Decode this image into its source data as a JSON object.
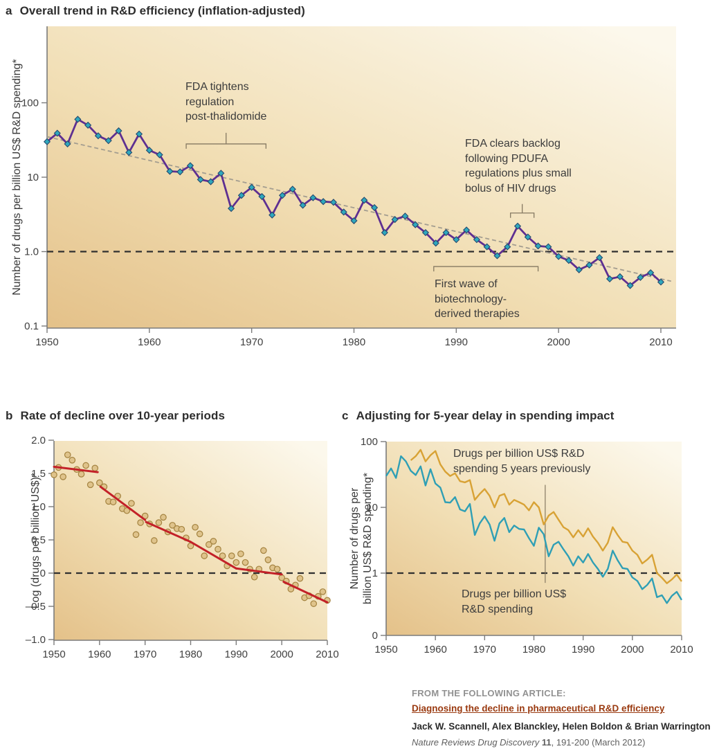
{
  "panels": {
    "a": {
      "letter": "a",
      "title": "Overall trend in R&D efficiency (inflation-adjusted)",
      "ylabel": "Number of drugs per billion US$ R&D spending*"
    },
    "b": {
      "letter": "b",
      "title": "Rate of decline over 10-year periods",
      "ylabel": "Log (drugs per billion US$)*"
    },
    "c": {
      "letter": "c",
      "title": "Adjusting for 5-year delay in spending impact",
      "ylabel": "Number of drugs per\nbillion US$ R&D spending*"
    }
  },
  "annotations": {
    "fda_tightens": "FDA tightens\nregulation\npost-thalidomide",
    "fda_clears": "FDA clears backlog\nfollowing PDUFA\nregulations plus small\nbolus of HIV drugs",
    "first_wave": "First wave of\nbiotechnology-\nderived therapies",
    "c_top": "Drugs per billion US$ R&D\nspending 5 years previously",
    "c_bottom": "Drugs per billion US$\nR&D spending"
  },
  "footer": {
    "heading": "FROM THE FOLLOWING ARTICLE:",
    "link": "Diagnosing the decline in pharmaceutical R&D efficiency",
    "authors": "Jack W. Scannell, Alex Blanckley, Helen Boldon & Brian Warrington",
    "journal_name": "Nature Reviews Drug Discovery",
    "journal_volume": "11",
    "journal_rest": ", 191-200 (March 2012)"
  },
  "colors": {
    "gradient_bottom": "#e4c189",
    "gradient_mid": "#f1deb4",
    "gradient_top": "#fcf8ec",
    "axis": "#7b7b7b",
    "tick_text": "#3f3f3f",
    "purple": "#5e2f91",
    "marker_fill": "#2fa8bd",
    "marker_stroke": "#25496e",
    "trend": "#a39d90",
    "ref_line": "#2f2f2f",
    "red": "#c32128",
    "dot_fill": "#dfc38b",
    "dot_stroke": "#a3823f",
    "teal": "#2f9fb5",
    "orange": "#d8a235",
    "bracket": "#857962",
    "link": "#9a3a10"
  },
  "chart_data": [
    {
      "id": "a",
      "type": "line",
      "title": "Overall trend in R&D efficiency (inflation-adjusted)",
      "ylabel": "Number of drugs per billion US$ R&D spending*",
      "yscale": "log",
      "ylim": [
        0.1,
        1000
      ],
      "grid": false,
      "yticks": [
        {
          "v": 100,
          "label": "100"
        },
        {
          "v": 10,
          "label": "10"
        },
        {
          "v": 1,
          "label": "1.0"
        },
        {
          "v": 0.1,
          "label": "0.1"
        }
      ],
      "xticks": [
        1950,
        1960,
        1970,
        1980,
        1990,
        2000,
        2010
      ],
      "xlim": [
        1950,
        2011.5
      ],
      "reference_line": 1.0,
      "x_start": 1950,
      "x_step": 1,
      "series": [
        {
          "name": "Number of drugs per billion US$ R&D spending (inflation-adjusted)",
          "color": "#5e2f91",
          "marker": "diamond",
          "values": [
            30,
            39,
            28,
            60,
            50,
            36,
            31,
            42,
            21.5,
            38,
            23,
            20,
            12,
            11.8,
            14.3,
            9.3,
            8.7,
            11.3,
            3.8,
            5.7,
            7.3,
            5.5,
            3.1,
            5.7,
            6.9,
            4.2,
            5.3,
            4.7,
            4.6,
            3.4,
            2.6,
            4.9,
            3.9,
            1.8,
            2.7,
            3,
            2.3,
            1.8,
            1.3,
            1.8,
            1.45,
            1.95,
            1.45,
            1.16,
            0.88,
            1.16,
            2.2,
            1.57,
            1.19,
            1.16,
            0.86,
            0.76,
            0.57,
            0.66,
            0.83,
            0.43,
            0.46,
            0.35,
            0.45,
            0.52,
            0.39
          ]
        }
      ],
      "trend": {
        "x": [
          1950,
          2011
        ],
        "v": [
          35,
          0.4
        ],
        "style": "dashed"
      },
      "brackets": [
        {
          "x1": 1963.6,
          "x2": 1971.4,
          "v": 28,
          "stem": 16
        },
        {
          "x1": 1995.3,
          "x2": 1997.6,
          "v": 3.3,
          "stem": 13
        },
        {
          "x1": 1987.8,
          "x2": 1998.0,
          "v": 0.63,
          "stem": 0
        }
      ]
    },
    {
      "id": "b",
      "type": "scatter",
      "title": "Rate of decline over 10-year periods",
      "ylabel": "Log (drugs per billion US$)*",
      "yscale": "linear",
      "ylim": [
        -1.0,
        2.0
      ],
      "grid": false,
      "yticks": [
        {
          "v": 2,
          "label": "2.0"
        },
        {
          "v": 1.5,
          "label": "1.5"
        },
        {
          "v": 1,
          "label": "1.0"
        },
        {
          "v": 0.5,
          "label": "0.5"
        },
        {
          "v": 0,
          "label": "0"
        },
        {
          "v": -0.5,
          "label": "–0.5"
        },
        {
          "v": -1,
          "label": "–1.0"
        }
      ],
      "xticks": [
        1950,
        1960,
        1970,
        1980,
        1990,
        2000,
        2010
      ],
      "xlim": [
        1950,
        2010
      ],
      "reference_line": 0,
      "x_start": 1950,
      "x_step": 1,
      "scatter_values": [
        1.48,
        1.59,
        1.45,
        1.78,
        1.7,
        1.56,
        1.49,
        1.62,
        1.33,
        1.58,
        1.36,
        1.3,
        1.08,
        1.07,
        1.16,
        0.97,
        0.94,
        1.05,
        0.58,
        0.76,
        0.86,
        0.74,
        0.49,
        0.76,
        0.84,
        0.62,
        0.72,
        0.67,
        0.66,
        0.53,
        0.41,
        0.69,
        0.59,
        0.26,
        0.43,
        0.48,
        0.36,
        0.26,
        0.11,
        0.26,
        0.16,
        0.29,
        0.16,
        0.06,
        -0.06,
        0.06,
        0.34,
        0.2,
        0.08,
        0.06,
        -0.07,
        -0.12,
        -0.24,
        -0.18,
        -0.08,
        -0.37,
        -0.34,
        -0.46,
        -0.35,
        -0.28,
        -0.41
      ],
      "fit_segments": [
        [
          [
            1950,
            1.6
          ],
          [
            1959.6,
            1.52
          ]
        ],
        [
          [
            1960.2,
            1.3
          ],
          [
            1970,
            0.8
          ]
        ],
        [
          [
            1970.2,
            0.77
          ],
          [
            1980,
            0.47
          ]
        ],
        [
          [
            1980,
            0.47
          ],
          [
            1990,
            0.07
          ]
        ],
        [
          [
            1990,
            0.07
          ],
          [
            2000,
            -0.02
          ]
        ],
        [
          [
            2000.4,
            -0.13
          ],
          [
            2010,
            -0.44
          ]
        ]
      ]
    },
    {
      "id": "c",
      "type": "line",
      "title": "Adjusting for 5-year delay in spending impact",
      "ylabel": "Number of drugs per billion US$ R&D spending*",
      "yscale": "log",
      "grid": false,
      "yticks": [
        {
          "v": 100,
          "label": "100"
        },
        {
          "v": 10,
          "label": "10"
        },
        {
          "v": 1,
          "label": "1"
        },
        {
          "v": 0,
          "label": "0"
        }
      ],
      "xticks": [
        1950,
        1960,
        1970,
        1980,
        1990,
        2000,
        2010
      ],
      "xlim": [
        1950,
        2010
      ],
      "reference_line": 1,
      "series": [
        {
          "name": "Drugs per billion US$ R&D spending",
          "color": "#2f9fb5",
          "x_start": 1950,
          "values": [
            30,
            39,
            28,
            60,
            50,
            36,
            31,
            42,
            21.5,
            38,
            23,
            20,
            12,
            11.8,
            14.3,
            9.3,
            8.7,
            11.3,
            3.8,
            5.7,
            7.3,
            5.5,
            3.1,
            5.7,
            6.9,
            4.2,
            5.3,
            4.7,
            4.6,
            3.4,
            2.6,
            4.9,
            3.9,
            1.8,
            2.7,
            3,
            2.3,
            1.8,
            1.3,
            1.8,
            1.45,
            1.95,
            1.45,
            1.16,
            0.88,
            1.16,
            2.2,
            1.57,
            1.19,
            1.16,
            0.86,
            0.76,
            0.57,
            0.66,
            0.83,
            0.43,
            0.46,
            0.35,
            0.45,
            0.52,
            0.39
          ]
        },
        {
          "name": "Drugs per billion US$ R&D spending 5 years previously",
          "color": "#d8a235",
          "x_start": 1955,
          "values": [
            52,
            60,
            75,
            50,
            62,
            72,
            45,
            35,
            30,
            33,
            25,
            24,
            26,
            13,
            16,
            19,
            15,
            10,
            15,
            16,
            11,
            13,
            12,
            11,
            9,
            12,
            10,
            5.5,
            7.5,
            8.5,
            6.5,
            5,
            4.5,
            3.5,
            4.5,
            3.6,
            4.8,
            3.6,
            2.9,
            2.2,
            2.9,
            5,
            3.8,
            3,
            2.9,
            2.2,
            1.9,
            1.4,
            1.6,
            1.9,
            1,
            0.85,
            0.7,
            0.8,
            0.95,
            0.75
          ]
        }
      ],
      "pointer": {
        "year": 1982.3,
        "v1": 22,
        "v2": 0.71
      }
    }
  ]
}
